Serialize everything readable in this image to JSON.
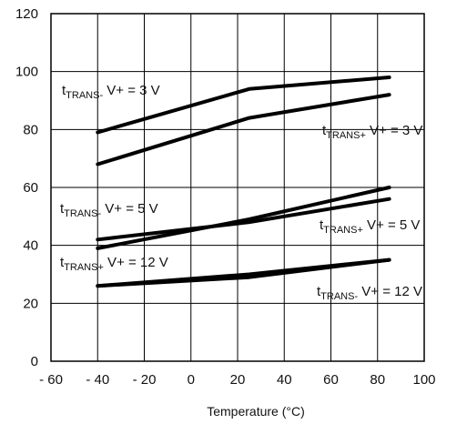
{
  "chart_data": {
    "type": "line",
    "xlabel": "Temperature (°C)",
    "ylabel": "",
    "xlim": [
      -60,
      100
    ],
    "ylim": [
      0,
      120
    ],
    "x_ticks": [
      "- 60",
      "- 40",
      "- 20",
      "0",
      "20",
      "40",
      "60",
      "80",
      "100"
    ],
    "x_tick_values": [
      -60,
      -40,
      -20,
      0,
      20,
      40,
      60,
      80,
      100
    ],
    "y_ticks": [
      "0",
      "20",
      "40",
      "60",
      "80",
      "100",
      "120"
    ],
    "y_tick_values": [
      0,
      20,
      40,
      60,
      80,
      100,
      120
    ],
    "grid": true,
    "line_color": "#000000",
    "series": [
      {
        "name": "tTRANS- V+ = 3 V",
        "x": [
          -40,
          25,
          85
        ],
        "y": [
          79,
          94,
          98
        ]
      },
      {
        "name": "tTRANS+ V+ = 3 V",
        "x": [
          -40,
          25,
          85
        ],
        "y": [
          68,
          84,
          92
        ]
      },
      {
        "name": "tTRANS- V+ = 5 V",
        "x": [
          -40,
          25,
          85
        ],
        "y": [
          39,
          49,
          60
        ]
      },
      {
        "name": "tTRANS+ V+ = 5 V",
        "x": [
          -40,
          25,
          85
        ],
        "y": [
          42,
          48,
          56
        ]
      },
      {
        "name": "tTRANS+ V+ = 12 V",
        "x": [
          -40,
          25,
          85
        ],
        "y": [
          26,
          30,
          35
        ]
      },
      {
        "name": "tTRANS- V+ = 12 V",
        "x": [
          -40,
          25,
          85
        ],
        "y": [
          26,
          29,
          35
        ]
      }
    ],
    "annotations": [
      {
        "base": "t",
        "sub": "TRANS-",
        "rest": " V+ = 3 V"
      },
      {
        "base": "t",
        "sub": "TRANS+",
        "rest": " V+ = 3 V"
      },
      {
        "base": "t",
        "sub": "TRANS-",
        "rest": " V+ = 5 V"
      },
      {
        "base": "t",
        "sub": "TRANS+",
        "rest": " V+ = 5 V"
      },
      {
        "base": "t",
        "sub": "TRANS+",
        "rest": " V+ = 12 V"
      },
      {
        "base": "t",
        "sub": "TRANS-",
        "rest": " V+ = 12 V"
      }
    ]
  }
}
